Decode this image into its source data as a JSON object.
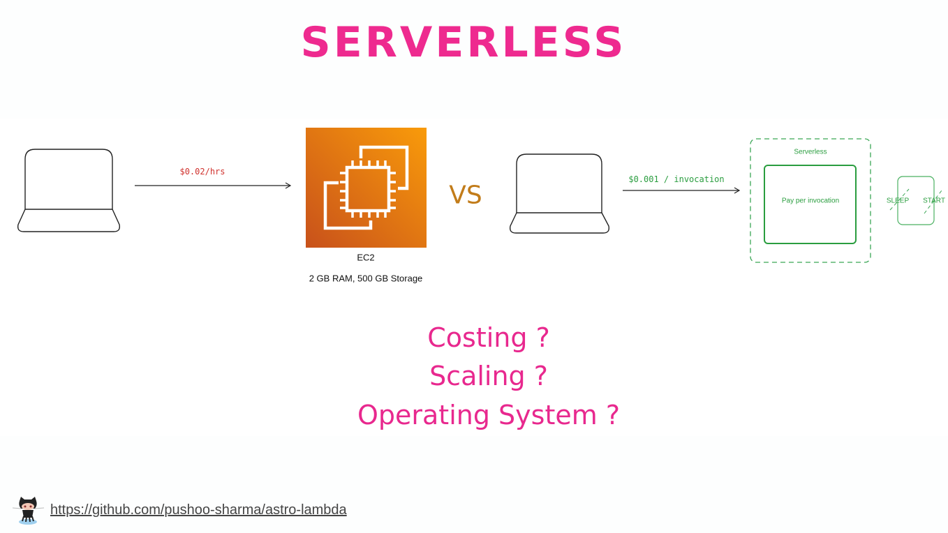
{
  "title": "SERVERLESS",
  "left": {
    "price_label": "$0.02/hrs",
    "server_name": "EC2",
    "server_specs": "2 GB RAM, 500 GB Storage",
    "server_icon": "ec2-chip-icon"
  },
  "vs": "VS",
  "right": {
    "price_label": "$0.001 / invocation",
    "group_label": "Serverless",
    "inner_label": "Pay per invocation",
    "states": [
      "SLEEP",
      "START"
    ]
  },
  "questions": [
    "Costing ?",
    "Scaling ?",
    "Operating System ?"
  ],
  "footer": {
    "link": "https://github.com/pushoo-sharma/astro-lambda",
    "icon": "github-octocat-icon"
  },
  "colors": {
    "title": "#ee2a8f",
    "questions": "#e8288e",
    "vs": "#c27c1a",
    "left_price": "#d0312d",
    "serverless_green": "#2a9d3f",
    "ec2_orange": "#e0720f"
  }
}
